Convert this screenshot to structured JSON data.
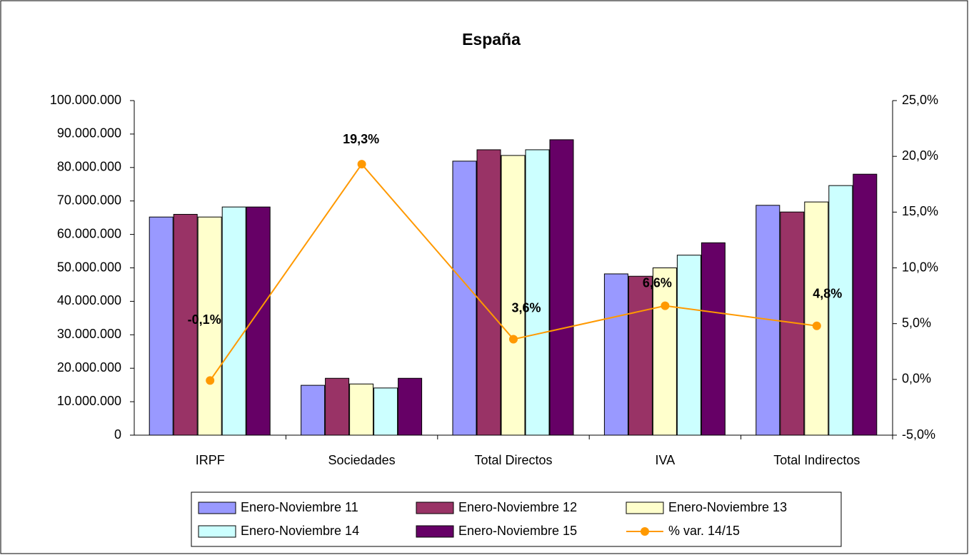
{
  "chart_data": {
    "type": "bar",
    "title": "España",
    "categories": [
      "IRPF",
      "Sociedades",
      "Total Directos",
      "IVA",
      "Total Indirectos"
    ],
    "series": [
      {
        "name": "Enero-Noviembre 11",
        "color": "#9999ff",
        "values": [
          65200000,
          14900000,
          81900000,
          48200000,
          68700000
        ]
      },
      {
        "name": "Enero-Noviembre 12",
        "color": "#993366",
        "values": [
          66000000,
          17000000,
          85300000,
          47500000,
          66700000
        ]
      },
      {
        "name": "Enero-Noviembre 13",
        "color": "#ffffcc",
        "values": [
          65200000,
          15300000,
          83600000,
          50000000,
          69700000
        ]
      },
      {
        "name": "Enero-Noviembre 14",
        "color": "#ccffff",
        "values": [
          68200000,
          14100000,
          85300000,
          53800000,
          74600000
        ]
      },
      {
        "name": "Enero-Noviembre 15",
        "color": "#660066",
        "values": [
          68200000,
          17000000,
          88300000,
          57500000,
          78000000
        ]
      },
      {
        "name": "% var. 14/15",
        "color": "#ff9900",
        "type": "line",
        "axis": "y2",
        "values": [
          -0.1,
          19.3,
          3.6,
          6.6,
          4.8
        ],
        "value_labels": [
          "-0,1%",
          "19,3%",
          "3,6%",
          "6,6%",
          "4,8%"
        ]
      }
    ],
    "ylim": [
      0,
      100000000
    ],
    "yticks": [
      0,
      {
        "value": 10000000,
        "label": "10.000.000"
      },
      {
        "value": 20000000,
        "label": "20.000.000"
      },
      {
        "value": 30000000,
        "label": "30.000.000"
      },
      {
        "value": 40000000,
        "label": "40.000.000"
      },
      {
        "value": 50000000,
        "label": "50.000.000"
      },
      {
        "value": 60000000,
        "label": "60.000.000"
      },
      {
        "value": 70000000,
        "label": "70.000.000"
      },
      {
        "value": 80000000,
        "label": "80.000.000"
      },
      {
        "value": 90000000,
        "label": "90.000.000"
      },
      {
        "value": 100000000,
        "label": "100.000.000"
      }
    ],
    "y2lim": [
      -5,
      25
    ],
    "y2ticks": [
      {
        "value": -5,
        "label": "-5,0%"
      },
      {
        "value": 0,
        "label": "0,0%"
      },
      {
        "value": 5,
        "label": "5,0%"
      },
      {
        "value": 10,
        "label": "10,0%"
      },
      {
        "value": 15,
        "label": "15,0%"
      },
      {
        "value": 20,
        "label": "20,0%"
      },
      {
        "value": 25,
        "label": "25,0%"
      }
    ],
    "grid": false,
    "legend": "bottom"
  }
}
